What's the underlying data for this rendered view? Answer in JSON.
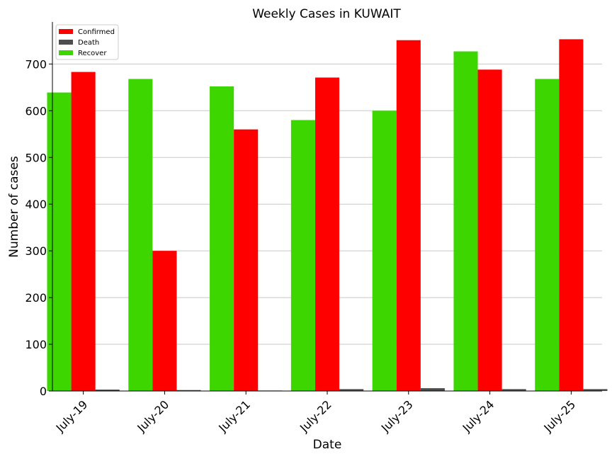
{
  "chart_data": {
    "type": "bar",
    "title": "Weekly Cases in KUWAIT",
    "xlabel": "Date",
    "ylabel": "Number of cases",
    "categories": [
      "July-19",
      "July-20",
      "July-21",
      "July-22",
      "July-23",
      "July-24",
      "July-25"
    ],
    "series": [
      {
        "name": "Recover",
        "color": "#3dd600",
        "values": [
          639,
          668,
          652,
          580,
          600,
          727,
          668
        ]
      },
      {
        "name": "Confirmed",
        "color": "#ff0000",
        "values": [
          683,
          300,
          560,
          671,
          751,
          688,
          753
        ]
      },
      {
        "name": "Death",
        "color": "#4d4d4d",
        "values": [
          3,
          2,
          1,
          4,
          6,
          4,
          4
        ]
      }
    ],
    "legend_order": [
      "Confirmed",
      "Death",
      "Recover"
    ],
    "legend_position": "top-left",
    "ylim": [
      0,
      790
    ],
    "yticks": [
      0,
      100,
      200,
      300,
      400,
      500,
      600,
      700
    ],
    "grid": "horizontal",
    "grid_color": "#c8c8c8"
  }
}
